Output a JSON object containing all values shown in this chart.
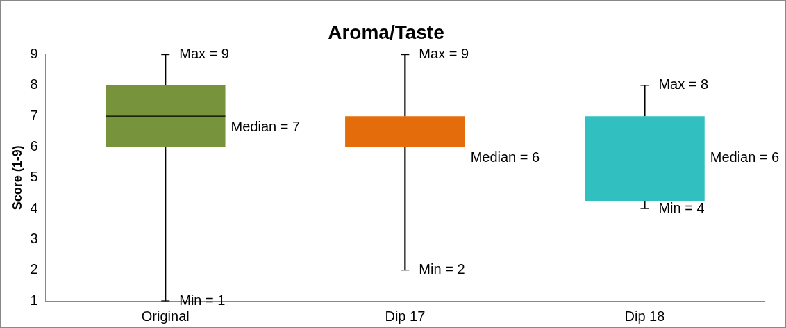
{
  "chart_data": {
    "type": "box",
    "title": "Aroma/Taste",
    "ylabel": "Score (1-9)",
    "categories": [
      "Original",
      "Dip 17",
      "Dip 18"
    ],
    "boxes": [
      {
        "low": 1,
        "q1": 6,
        "median": 7,
        "q3": 8,
        "high": 9
      },
      {
        "low": 2,
        "q1": 6,
        "median": 6,
        "q3": 7,
        "high": 9
      },
      {
        "low": 4,
        "q1": 4.25,
        "median": 6,
        "q3": 7,
        "high": 8
      }
    ],
    "colors": [
      "#77933c",
      "#e46c0a",
      "#31bfbf"
    ],
    "ylim": [
      1,
      9
    ],
    "yticks": [
      1,
      2,
      3,
      4,
      5,
      6,
      7,
      8,
      9
    ],
    "grid": false,
    "legend": false,
    "annotations": [
      {
        "text": "Max = 9",
        "x": "Original",
        "y": 9
      },
      "Median = 7",
      {
        "text": "Min = 1",
        "x": "Original",
        "y": 1
      },
      {
        "text": "Max = 9",
        "x": "Dip 17",
        "y": 9
      },
      "Median = 6",
      {
        "text": "Min = 2",
        "x": "Dip 17",
        "y": 2
      },
      {
        "text": "Max = 8",
        "x": "Dip 18",
        "y": 8
      },
      "Median = 6",
      {
        "text": "Min = 4",
        "x": "Dip 18",
        "y": 4
      }
    ]
  }
}
